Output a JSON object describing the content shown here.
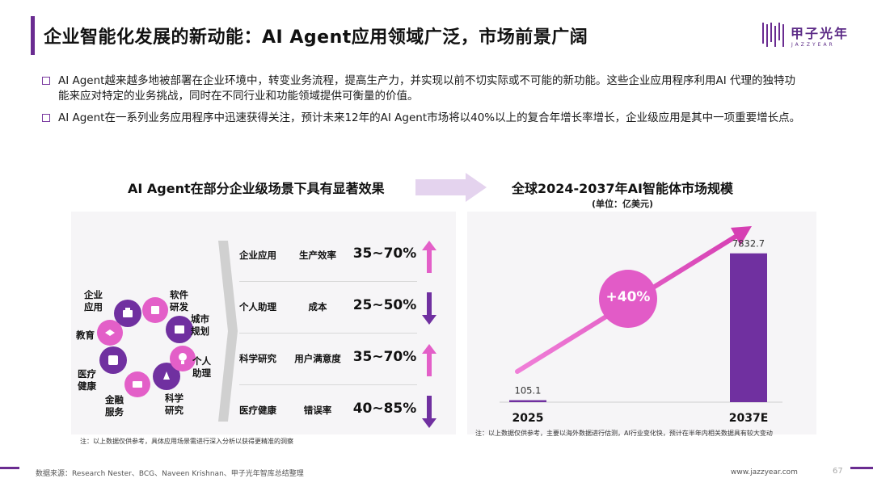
{
  "title": "企业智能化发展的新动能：AI Agent应用领域广泛，市场前景广阔",
  "logo": {
    "cn": "甲子光年",
    "en": "JAZZYEAR"
  },
  "bullets": [
    "AI Agent越来越多地被部署在企业环境中，转变业务流程，提高生产力，并实现以前不切实际或不可能的新功能。这些企业应用程序利用AI 代理的独特功能来应对特定的业务挑战，同时在不同行业和功能领域提供可衡量的价值。",
    "AI Agent在一系列业务应用程序中迅速获得关注，预计未来12年的AI Agent市场将以40%以上的复合年增长率增长，企业级应用是其中一项重要增长点。"
  ],
  "left": {
    "heading": "AI Agent在部分企业级场景下具有显著效果",
    "cycle": [
      {
        "label": "企业\n应用",
        "icon": "briefcase-icon"
      },
      {
        "label": "软件\n研发",
        "icon": "code-icon"
      },
      {
        "label": "城市\n规划",
        "icon": "building-icon"
      },
      {
        "label": "个人\n助理",
        "icon": "lightbulb-icon"
      },
      {
        "label": "科学\n研究",
        "icon": "flask-icon"
      },
      {
        "label": "金融\n服务",
        "icon": "money-icon"
      },
      {
        "label": "医疗\n健康",
        "icon": "medical-icon"
      },
      {
        "label": "教育",
        "icon": "graduation-cap-icon"
      }
    ],
    "rows": [
      {
        "scene": "企业应用",
        "metric": "生产效率",
        "range": "35~70%",
        "direction": "up"
      },
      {
        "scene": "个人助理",
        "metric": "成本",
        "range": "25~50%",
        "direction": "down"
      },
      {
        "scene": "科学研究",
        "metric": "用户满意度",
        "range": "35~70%",
        "direction": "up"
      },
      {
        "scene": "医疗健康",
        "metric": "错误率",
        "range": "40~85%",
        "direction": "down"
      }
    ],
    "note": "注：以上数据仅供参考，具体应用场景需进行深入分析以获得更精准的洞察"
  },
  "right": {
    "heading": "全球2024-2037年AI智能体市场规模",
    "unit": "(单位：亿美元)",
    "growth_badge": "+40%",
    "note": "注：以上数据仅供参考，主要以海外数据进行估测，AI行业变化快，预计在半年内相关数据具有较大变动"
  },
  "chart_data": {
    "type": "bar",
    "title": "全球2024-2037年AI智能体市场规模",
    "unit": "亿美元",
    "categories": [
      "2025",
      "2037E"
    ],
    "values": [
      105.1,
      7832.7
    ],
    "value_labels": [
      "105.1",
      "7832.7"
    ],
    "ylim": [
      0,
      8500
    ],
    "annotation": "+40%",
    "grid": false,
    "bar_color": "#7030a0"
  },
  "footer": {
    "source": "数据来源：Research Nester、BCG、Naveen Krishnan、甲子光年智库总结整理",
    "url": "www.jazzyear.com",
    "page": "67"
  },
  "colors": {
    "accent": "#6a2c91",
    "pink": "#d63fb3",
    "bar": "#7030a0"
  }
}
